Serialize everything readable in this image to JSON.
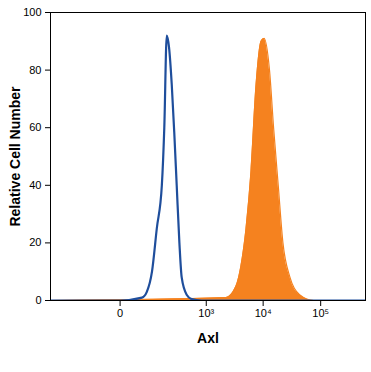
{
  "chart_data": {
    "type": "line",
    "x_label": "Axl",
    "y_label": "Relative Cell Number",
    "log": "x",
    "xlim": [
      -500,
      600000
    ],
    "xticks": [
      0,
      {
        "value": 1000,
        "label": "10³"
      },
      {
        "value": 10000,
        "label": "10⁴"
      },
      {
        "value": 100000,
        "label": "10⁵"
      }
    ],
    "ylim": [
      0,
      100
    ],
    "yticks": [
      0,
      20,
      40,
      60,
      80,
      100
    ],
    "grid": false,
    "series": [
      {
        "type": "area",
        "color": "#f5821f",
        "x": [
          -500,
          2240,
          3360,
          4100,
          5030,
          6150,
          7530,
          9200,
          10400,
          12900,
          15200,
          18300,
          22100,
          29300,
          43000,
          76000,
          600000
        ],
        "values": [
          0,
          1,
          5,
          12,
          25,
          45,
          75,
          90,
          91,
          80,
          60,
          40,
          20,
          8,
          2,
          0,
          0
        ]
      },
      {
        "type": "line",
        "color": "#1f4e9c",
        "x": [
          -500,
          0,
          46,
          63,
          85,
          110,
          142,
          160,
          180,
          200,
          227,
          255,
          284,
          320,
          354,
          439,
          542,
          822,
          600000
        ],
        "values": [
          0,
          0,
          1,
          3,
          10,
          25,
          40,
          60,
          92,
          88,
          75,
          58,
          40,
          20,
          8,
          2,
          0.5,
          0,
          0
        ]
      }
    ]
  }
}
